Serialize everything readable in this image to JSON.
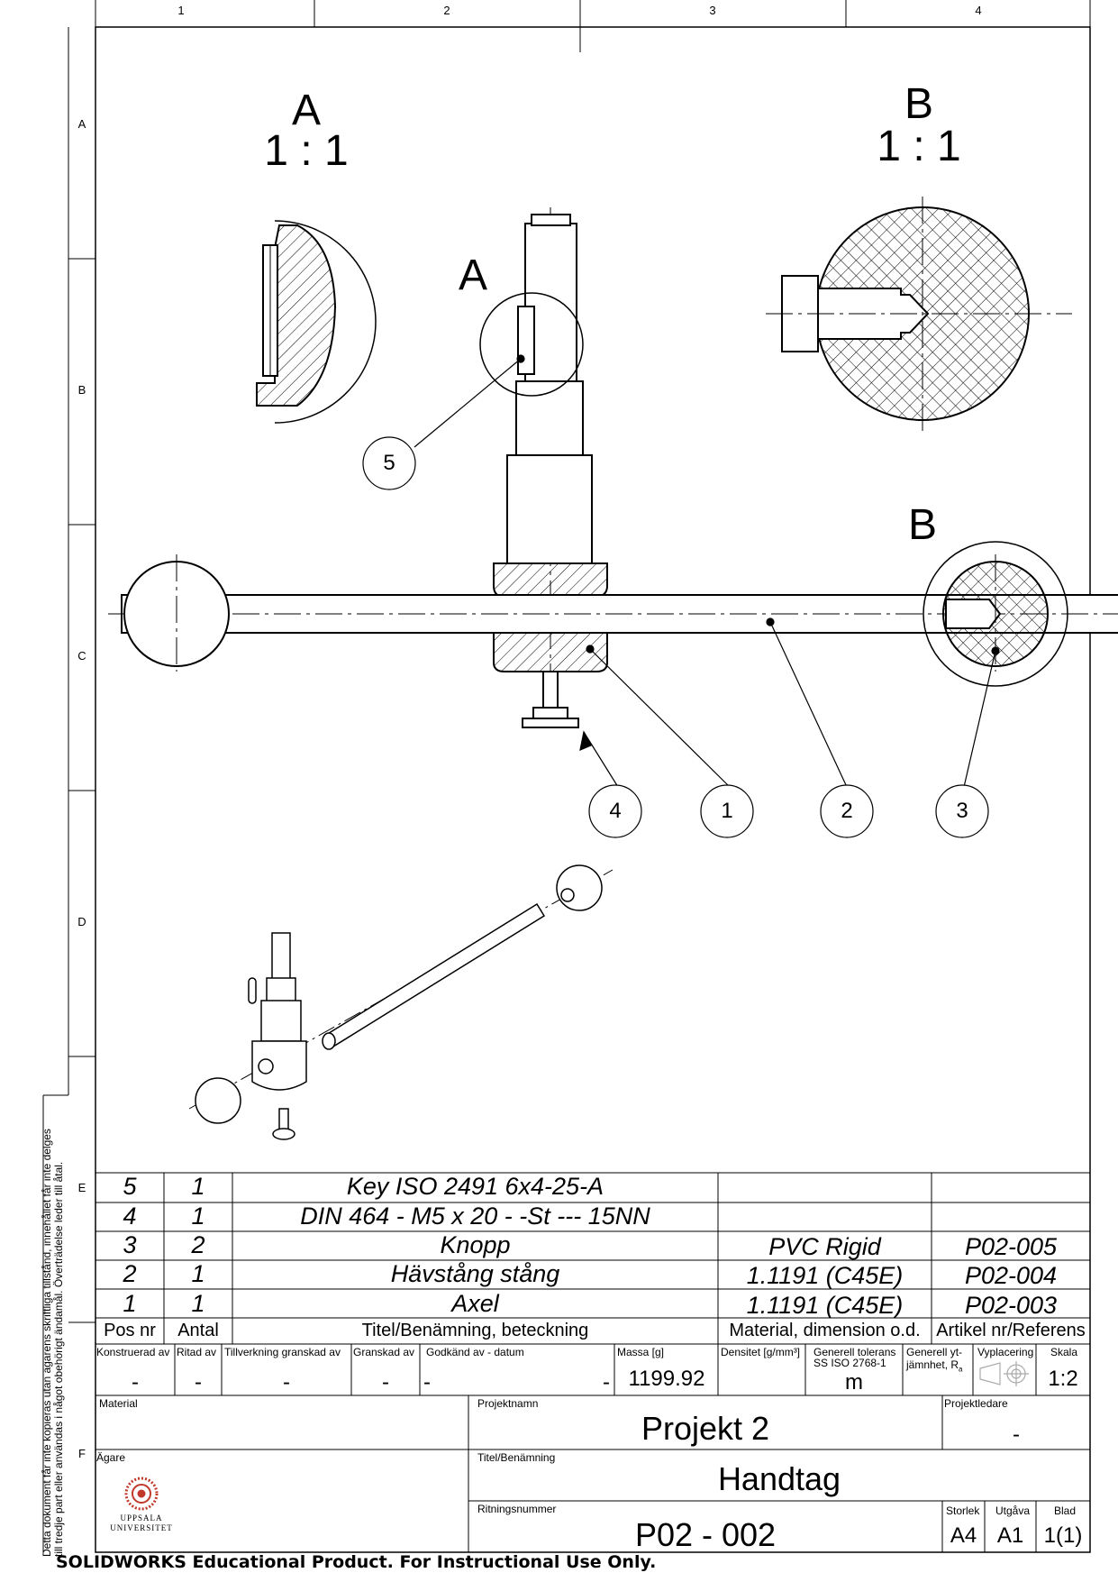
{
  "zones": {
    "columns": [
      "1",
      "2",
      "3",
      "4"
    ],
    "rows": [
      "A",
      "B",
      "C",
      "D",
      "E",
      "F"
    ]
  },
  "views": {
    "detail_a": {
      "letter": "A",
      "scale": "1 : 1"
    },
    "detail_b": {
      "letter": "B",
      "scale": "1 : 1"
    },
    "callout_a": "A",
    "callout_b": "B"
  },
  "balloons": [
    "5",
    "4",
    "1",
    "2",
    "3"
  ],
  "bom": {
    "rows": [
      {
        "pos": "5",
        "qty": "1",
        "title": "Key ISO 2491 6x4-25-A",
        "material": "",
        "ref": ""
      },
      {
        "pos": "4",
        "qty": "1",
        "title": "DIN 464 - M5 x 20 - -St --- 15NN",
        "material": "",
        "ref": ""
      },
      {
        "pos": "3",
        "qty": "2",
        "title": "Knopp",
        "material": "PVC Rigid",
        "ref": "P02-005"
      },
      {
        "pos": "2",
        "qty": "1",
        "title": "Hävstång stång",
        "material": "1.1191 (C45E)",
        "ref": "P02-004"
      },
      {
        "pos": "1",
        "qty": "1",
        "title": "Axel",
        "material": "1.1191 (C45E)",
        "ref": "P02-003"
      }
    ],
    "headers": {
      "pos": "Pos nr",
      "qty": "Antal",
      "title": "Titel/Benämning, beteckning",
      "material": "Material, dimension o.d.",
      "ref": "Artikel nr/Referens"
    }
  },
  "title_block": {
    "labels": {
      "constructed_by": "Konstruerad av",
      "drawn_by": "Ritad av",
      "manufacturing_check": "Tillverkning granskad av",
      "checked_by": "Granskad av",
      "approved_by": "Godkänd av - datum",
      "mass": "Massa [g]",
      "density": "Densitet [g/mm³]",
      "general_tolerance": "Generell tolerans",
      "tolerance_standard": "SS ISO 2768-1",
      "surface_roughness": "Generell yt-",
      "surface_roughness_2": "jämnhet, R",
      "surface_roughness_sub": "a",
      "projection": "Vyplacering",
      "scale": "Skala",
      "material": "Material",
      "project_name": "Projektnamn",
      "project_lead": "Projektledare",
      "owner": "Ägare",
      "title": "Titel/Benämning",
      "drawing_number": "Ritningsnummer",
      "size": "Storlek",
      "revision": "Utgåva",
      "sheet": "Blad"
    },
    "values": {
      "constructed_by": "-",
      "drawn_by": "-",
      "manufacturing_check": "-",
      "checked_by": "-",
      "approved_by_left": "-",
      "approved_by_right": "-",
      "mass": "1199.92",
      "tolerance_class": "m",
      "scale": "1:2",
      "project_name": "Projekt 2",
      "project_lead": "-",
      "title": "Handtag",
      "drawing_number": "P02 - 002",
      "size": "A4",
      "revision": "A1",
      "sheet": "1(1)"
    },
    "owner_logo_line1": "UPPSALA",
    "owner_logo_line2": "UNIVERSITET"
  },
  "side_note": {
    "line1": "Detta dokument får inte kopieras utan ägarens skriftliga tillstånd, innehållet får inte delges",
    "line2": "till tredje part eller användas i något obehörigt ändamål. Överträdelse leder till åtal."
  },
  "footer": "SOLIDWORKS Educational Product. For Instructional Use Only."
}
